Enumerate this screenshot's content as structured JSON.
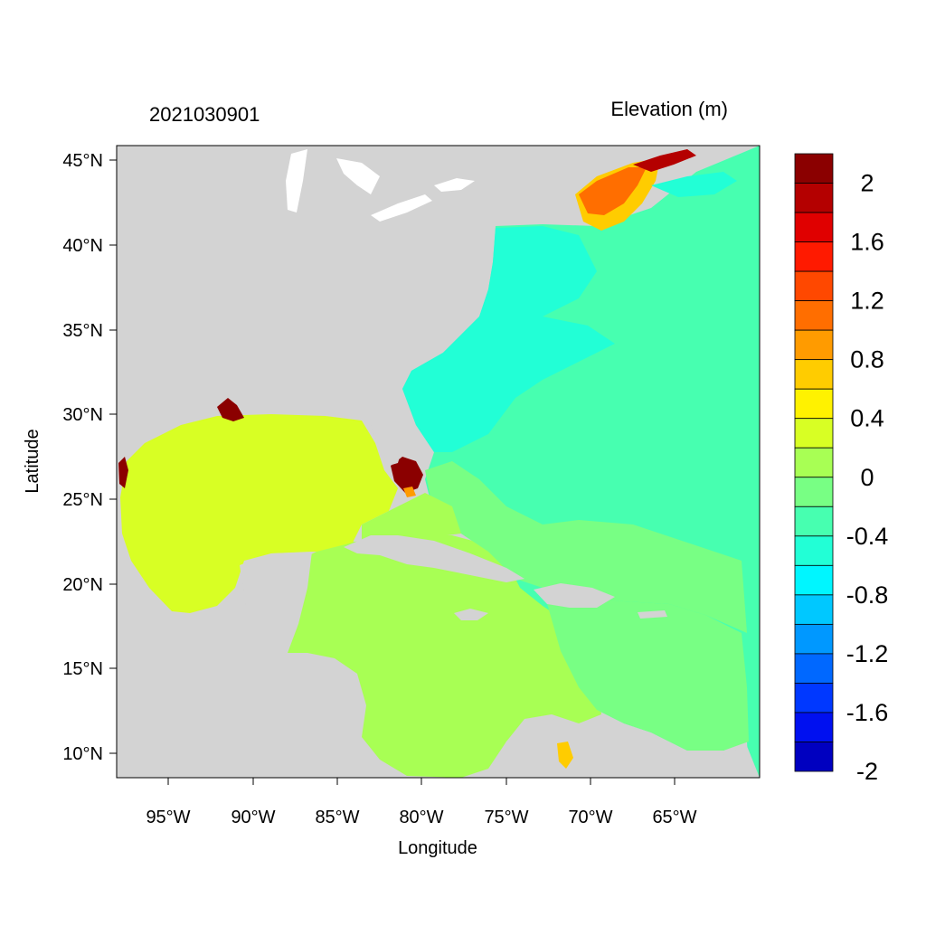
{
  "header": {
    "date_label": "2021030901",
    "variable_label": "Elevation (m)"
  },
  "map": {
    "x_axis_title": "Longitude",
    "y_axis_title": "Latitude",
    "lon_ticks": [
      "95°W",
      "90°W",
      "85°W",
      "80°W",
      "75°W",
      "70°W",
      "65°W"
    ],
    "lat_ticks": [
      "45°N",
      "40°N",
      "35°N",
      "30°N",
      "25°N",
      "20°N",
      "15°N",
      "10°N"
    ],
    "land_color": "#d3d3d3",
    "ocean_default_color": "#47ffb0"
  },
  "colorbar": {
    "colors": [
      "#8b0000",
      "#b40000",
      "#e00000",
      "#ff1a00",
      "#ff4800",
      "#ff6e00",
      "#ff9b00",
      "#ffcc00",
      "#fff200",
      "#d8ff24",
      "#a8ff54",
      "#78ff84",
      "#47ffb0",
      "#22ffd6",
      "#00f6ff",
      "#00c8ff",
      "#0098ff",
      "#0068ff",
      "#0038ff",
      "#0010f0",
      "#0000c0"
    ],
    "labels": [
      "2",
      "1.6",
      "1.2",
      "0.8",
      "0.4",
      "0",
      "-0.4",
      "-0.8",
      "-1.2",
      "-1.6",
      "-2"
    ]
  }
}
